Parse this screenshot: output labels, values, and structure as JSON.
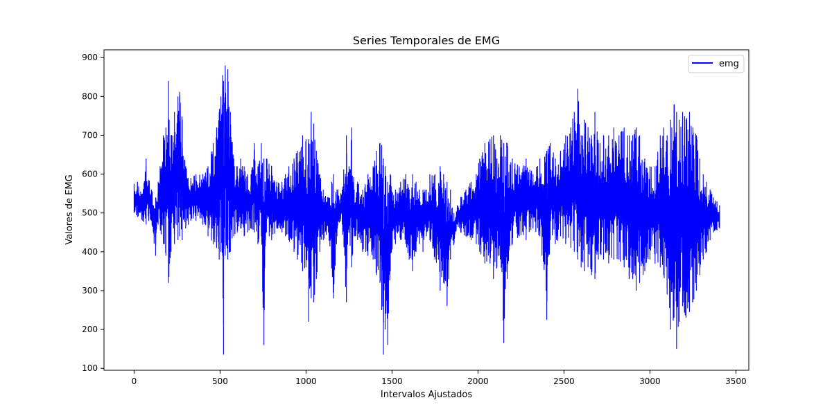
{
  "chart_data": {
    "type": "line",
    "title": "Series Temporales de EMG",
    "xlabel": "Intervalos Ajustados",
    "ylabel": "Valores de EMG",
    "xlim": [
      -175,
      3575
    ],
    "ylim": [
      95,
      920
    ],
    "xticks": [
      0,
      500,
      1000,
      1500,
      2000,
      2500,
      3000,
      3500
    ],
    "yticks": [
      100,
      200,
      300,
      400,
      500,
      600,
      700,
      800,
      900
    ],
    "xtick_labels": [
      "0",
      "500",
      "1000",
      "1500",
      "2000",
      "2500",
      "3000",
      "3500"
    ],
    "ytick_labels": [
      "100",
      "200",
      "300",
      "400",
      "500",
      "600",
      "700",
      "800",
      "900"
    ],
    "legend_position": "top-right",
    "grid": false,
    "series": [
      {
        "name": "emg",
        "color": "#0000ff",
        "x_start": 0,
        "x_end": 3405,
        "envelope": [
          [
            0,
            575,
            500
          ],
          [
            20,
            580,
            490
          ],
          [
            50,
            550,
            480
          ],
          [
            70,
            640,
            470
          ],
          [
            100,
            560,
            480
          ],
          [
            125,
            540,
            390
          ],
          [
            140,
            580,
            470
          ],
          [
            170,
            700,
            420
          ],
          [
            185,
            720,
            390
          ],
          [
            200,
            840,
            320
          ],
          [
            215,
            700,
            400
          ],
          [
            235,
            760,
            420
          ],
          [
            255,
            800,
            430
          ],
          [
            265,
            812,
            440
          ],
          [
            280,
            740,
            430
          ],
          [
            300,
            620,
            460
          ],
          [
            330,
            590,
            480
          ],
          [
            360,
            600,
            480
          ],
          [
            400,
            600,
            470
          ],
          [
            430,
            620,
            440
          ],
          [
            460,
            680,
            420
          ],
          [
            480,
            720,
            410
          ],
          [
            495,
            760,
            380
          ],
          [
            505,
            800,
            400
          ],
          [
            515,
            855,
            390
          ],
          [
            520,
            840,
            135
          ],
          [
            530,
            880,
            390
          ],
          [
            545,
            870,
            380
          ],
          [
            560,
            760,
            400
          ],
          [
            580,
            640,
            440
          ],
          [
            600,
            620,
            450
          ],
          [
            620,
            640,
            460
          ],
          [
            640,
            620,
            440
          ],
          [
            660,
            600,
            450
          ],
          [
            680,
            600,
            460
          ],
          [
            700,
            680,
            450
          ],
          [
            720,
            620,
            420
          ],
          [
            740,
            680,
            440
          ],
          [
            755,
            640,
            160
          ],
          [
            770,
            640,
            450
          ],
          [
            800,
            620,
            430
          ],
          [
            830,
            580,
            460
          ],
          [
            860,
            580,
            450
          ],
          [
            880,
            600,
            440
          ],
          [
            900,
            620,
            430
          ],
          [
            930,
            640,
            400
          ],
          [
            950,
            660,
            380
          ],
          [
            980,
            700,
            350
          ],
          [
            1000,
            690,
            360
          ],
          [
            1015,
            690,
            220
          ],
          [
            1030,
            760,
            280
          ],
          [
            1045,
            730,
            270
          ],
          [
            1060,
            660,
            330
          ],
          [
            1080,
            600,
            400
          ],
          [
            1100,
            560,
            430
          ],
          [
            1130,
            540,
            450
          ],
          [
            1160,
            600,
            280
          ],
          [
            1180,
            560,
            440
          ],
          [
            1210,
            560,
            470
          ],
          [
            1235,
            700,
            270
          ],
          [
            1250,
            620,
            450
          ],
          [
            1265,
            720,
            360
          ],
          [
            1280,
            560,
            440
          ],
          [
            1300,
            580,
            430
          ],
          [
            1330,
            560,
            400
          ],
          [
            1360,
            600,
            390
          ],
          [
            1390,
            620,
            380
          ],
          [
            1410,
            660,
            340
          ],
          [
            1430,
            680,
            320
          ],
          [
            1440,
            675,
            250
          ],
          [
            1450,
            640,
            135
          ],
          [
            1460,
            620,
            200
          ],
          [
            1475,
            580,
            160
          ],
          [
            1490,
            600,
            350
          ],
          [
            1520,
            560,
            420
          ],
          [
            1550,
            580,
            430
          ],
          [
            1580,
            600,
            420
          ],
          [
            1600,
            560,
            380
          ],
          [
            1620,
            600,
            350
          ],
          [
            1640,
            580,
            400
          ],
          [
            1660,
            560,
            420
          ],
          [
            1680,
            560,
            400
          ],
          [
            1700,
            560,
            440
          ],
          [
            1720,
            600,
            430
          ],
          [
            1750,
            600,
            380
          ],
          [
            1780,
            620,
            300
          ],
          [
            1800,
            600,
            320
          ],
          [
            1820,
            580,
            260
          ],
          [
            1840,
            560,
            380
          ],
          [
            1860,
            500,
            420
          ],
          [
            1880,
            520,
            470
          ],
          [
            1900,
            540,
            450
          ],
          [
            1930,
            560,
            440
          ],
          [
            1960,
            580,
            430
          ],
          [
            1990,
            600,
            420
          ],
          [
            2010,
            640,
            400
          ],
          [
            2040,
            680,
            370
          ],
          [
            2070,
            690,
            370
          ],
          [
            2090,
            700,
            330
          ],
          [
            2110,
            640,
            360
          ],
          [
            2130,
            700,
            380
          ],
          [
            2150,
            680,
            165
          ],
          [
            2170,
            680,
            330
          ],
          [
            2200,
            640,
            420
          ],
          [
            2240,
            620,
            440
          ],
          [
            2280,
            640,
            430
          ],
          [
            2320,
            600,
            460
          ],
          [
            2360,
            640,
            440
          ],
          [
            2400,
            660,
            225
          ],
          [
            2420,
            680,
            430
          ],
          [
            2450,
            640,
            420
          ],
          [
            2480,
            660,
            440
          ],
          [
            2510,
            700,
            420
          ],
          [
            2540,
            720,
            410
          ],
          [
            2560,
            760,
            400
          ],
          [
            2580,
            820,
            380
          ],
          [
            2600,
            700,
            360
          ],
          [
            2620,
            740,
            350
          ],
          [
            2640,
            720,
            360
          ],
          [
            2660,
            700,
            340
          ],
          [
            2680,
            760,
            330
          ],
          [
            2700,
            680,
            380
          ],
          [
            2730,
            700,
            380
          ],
          [
            2760,
            700,
            370
          ],
          [
            2790,
            720,
            380
          ],
          [
            2820,
            700,
            380
          ],
          [
            2850,
            720,
            360
          ],
          [
            2880,
            700,
            330
          ],
          [
            2900,
            700,
            330
          ],
          [
            2920,
            720,
            300
          ],
          [
            2940,
            700,
            320
          ],
          [
            2970,
            640,
            350
          ],
          [
            3000,
            620,
            380
          ],
          [
            3030,
            620,
            370
          ],
          [
            3060,
            700,
            360
          ],
          [
            3080,
            720,
            340
          ],
          [
            3100,
            700,
            290
          ],
          [
            3120,
            740,
            200
          ],
          [
            3140,
            780,
            230
          ],
          [
            3155,
            760,
            150
          ],
          [
            3170,
            740,
            220
          ],
          [
            3190,
            760,
            260
          ],
          [
            3210,
            740,
            230
          ],
          [
            3230,
            760,
            245
          ],
          [
            3250,
            720,
            270
          ],
          [
            3270,
            700,
            300
          ],
          [
            3290,
            640,
            340
          ],
          [
            3310,
            600,
            380
          ],
          [
            3330,
            580,
            400
          ],
          [
            3350,
            560,
            430
          ],
          [
            3370,
            540,
            450
          ],
          [
            3390,
            530,
            455
          ],
          [
            3405,
            520,
            460
          ]
        ]
      }
    ]
  }
}
